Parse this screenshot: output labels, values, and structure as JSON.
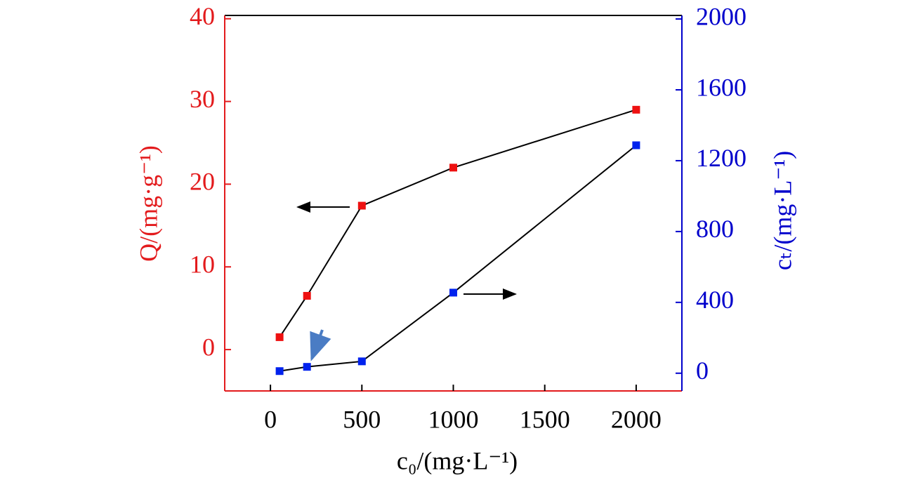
{
  "chart_data": {
    "type": "line",
    "x_label": "c₀/(mg·L⁻¹)",
    "y_label": "Q/(mg·g⁻¹)",
    "y2_label": "cₜ/(mg·L⁻¹)",
    "x": [
      50,
      200,
      500,
      1000,
      2000
    ],
    "xlim": [
      -250,
      2250
    ],
    "xticks": [
      0,
      500,
      1000,
      1500,
      2000
    ],
    "ylim": [
      -5,
      40.4
    ],
    "yticks": [
      0,
      10,
      20,
      30,
      40
    ],
    "y2lim": [
      -100,
      2020
    ],
    "y2ticks": [
      0,
      400,
      800,
      1200,
      1600,
      2000
    ],
    "y_color": "#e31a1c",
    "y2_color": "#0000cc",
    "series": [
      {
        "name": "Q",
        "color": "#ee1111",
        "values": [
          1.5,
          6.5,
          17.4,
          22.0,
          29.0
        ]
      },
      {
        "name": "ct",
        "color": "#0022ee",
        "axis": "y2",
        "values": [
          12,
          36,
          67,
          455,
          1287
        ]
      }
    ]
  }
}
